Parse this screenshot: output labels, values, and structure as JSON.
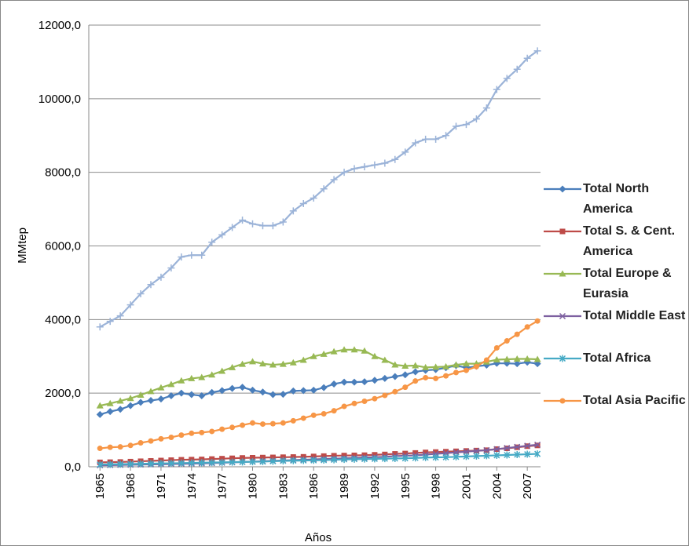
{
  "chart_data": {
    "type": "line",
    "y_label": "MMtep",
    "x_label": "Años",
    "x": [
      1965,
      1966,
      1967,
      1968,
      1969,
      1970,
      1971,
      1972,
      1973,
      1974,
      1975,
      1976,
      1977,
      1978,
      1979,
      1980,
      1981,
      1982,
      1983,
      1984,
      1985,
      1986,
      1987,
      1988,
      1989,
      1990,
      1991,
      1992,
      1993,
      1994,
      1995,
      1996,
      1997,
      1998,
      1999,
      2000,
      2001,
      2002,
      2003,
      2004,
      2005,
      2006,
      2007,
      2008
    ],
    "xlim": [
      1963.9,
      2008.3
    ],
    "xticks": [
      1965,
      1968,
      1971,
      1974,
      1977,
      1980,
      1983,
      1986,
      1989,
      1992,
      1995,
      1998,
      2001,
      2004,
      2007
    ],
    "ylim": [
      0,
      12000
    ],
    "yticks": [
      {
        "value": 0,
        "label": "0,0"
      },
      {
        "value": 2000,
        "label": "2000,0"
      },
      {
        "value": 4000,
        "label": "4000,0"
      },
      {
        "value": 6000,
        "label": "6000,0"
      },
      {
        "value": 8000,
        "label": "8000,0"
      },
      {
        "value": 10000,
        "label": "10000,0"
      },
      {
        "value": 12000,
        "label": "12000,0"
      }
    ],
    "grid": true,
    "legend": "right",
    "series": [
      {
        "name": "Total North America",
        "color": "#4a7ebb",
        "marker": "diamond",
        "values": [
          1420,
          1500,
          1560,
          1660,
          1750,
          1800,
          1840,
          1930,
          2000,
          1960,
          1930,
          2020,
          2070,
          2130,
          2160,
          2080,
          2030,
          1960,
          1970,
          2060,
          2070,
          2080,
          2150,
          2250,
          2300,
          2300,
          2310,
          2350,
          2400,
          2450,
          2500,
          2580,
          2620,
          2640,
          2690,
          2750,
          2690,
          2730,
          2760,
          2810,
          2810,
          2800,
          2840,
          2800
        ]
      },
      {
        "name": "Total S. & Cent. America",
        "color": "#be4b48",
        "marker": "square",
        "values": [
          120,
          125,
          130,
          140,
          150,
          160,
          170,
          180,
          190,
          195,
          200,
          210,
          220,
          230,
          240,
          245,
          250,
          255,
          260,
          265,
          270,
          280,
          290,
          300,
          305,
          310,
          315,
          325,
          335,
          350,
          360,
          375,
          390,
          400,
          410,
          420,
          430,
          440,
          450,
          480,
          500,
          530,
          560,
          580
        ]
      },
      {
        "name": "Total Europe & Eurasia",
        "color": "#98b954",
        "marker": "triangle",
        "values": [
          1660,
          1720,
          1790,
          1860,
          1950,
          2050,
          2150,
          2240,
          2340,
          2400,
          2430,
          2500,
          2600,
          2700,
          2790,
          2860,
          2800,
          2770,
          2790,
          2830,
          2900,
          3000,
          3060,
          3130,
          3180,
          3180,
          3150,
          3000,
          2900,
          2770,
          2740,
          2750,
          2700,
          2710,
          2720,
          2770,
          2800,
          2800,
          2850,
          2910,
          2920,
          2930,
          2930,
          2920
        ]
      },
      {
        "name": "Total Middle East",
        "color": "#7d60a0",
        "marker": "x",
        "values": [
          40,
          45,
          50,
          55,
          60,
          65,
          70,
          75,
          80,
          85,
          90,
          100,
          110,
          120,
          130,
          140,
          150,
          160,
          170,
          180,
          190,
          200,
          210,
          220,
          230,
          240,
          250,
          260,
          270,
          290,
          300,
          310,
          330,
          350,
          370,
          390,
          410,
          430,
          450,
          480,
          510,
          540,
          570,
          600
        ]
      },
      {
        "name": "Total Africa",
        "color": "#46aac5",
        "marker": "star",
        "values": [
          60,
          65,
          70,
          75,
          80,
          85,
          90,
          95,
          100,
          105,
          110,
          115,
          120,
          125,
          130,
          135,
          140,
          150,
          160,
          165,
          170,
          175,
          180,
          190,
          200,
          205,
          210,
          215,
          220,
          225,
          230,
          240,
          250,
          255,
          260,
          270,
          280,
          290,
          300,
          310,
          320,
          330,
          340,
          350
        ]
      },
      {
        "name": "Total Asia Pacific",
        "color": "#f79646",
        "marker": "circle",
        "values": [
          500,
          530,
          540,
          580,
          650,
          700,
          760,
          800,
          860,
          910,
          930,
          960,
          1020,
          1070,
          1130,
          1190,
          1160,
          1170,
          1190,
          1250,
          1320,
          1400,
          1440,
          1520,
          1640,
          1720,
          1780,
          1850,
          1940,
          2040,
          2160,
          2330,
          2420,
          2400,
          2470,
          2560,
          2620,
          2720,
          2900,
          3230,
          3420,
          3600,
          3800,
          3960
        ]
      },
      {
        "name": null,
        "color": "#9bb3d8",
        "marker": "plus",
        "values": [
          3800,
          3950,
          4100,
          4400,
          4700,
          4950,
          5150,
          5400,
          5700,
          5750,
          5750,
          6100,
          6300,
          6500,
          6700,
          6600,
          6550,
          6550,
          6650,
          6950,
          7150,
          7300,
          7550,
          7800,
          8000,
          8100,
          8150,
          8200,
          8250,
          8350,
          8550,
          8800,
          8900,
          8900,
          9000,
          9250,
          9300,
          9450,
          9750,
          10250,
          10550,
          10800,
          11100,
          11300
        ]
      }
    ]
  }
}
